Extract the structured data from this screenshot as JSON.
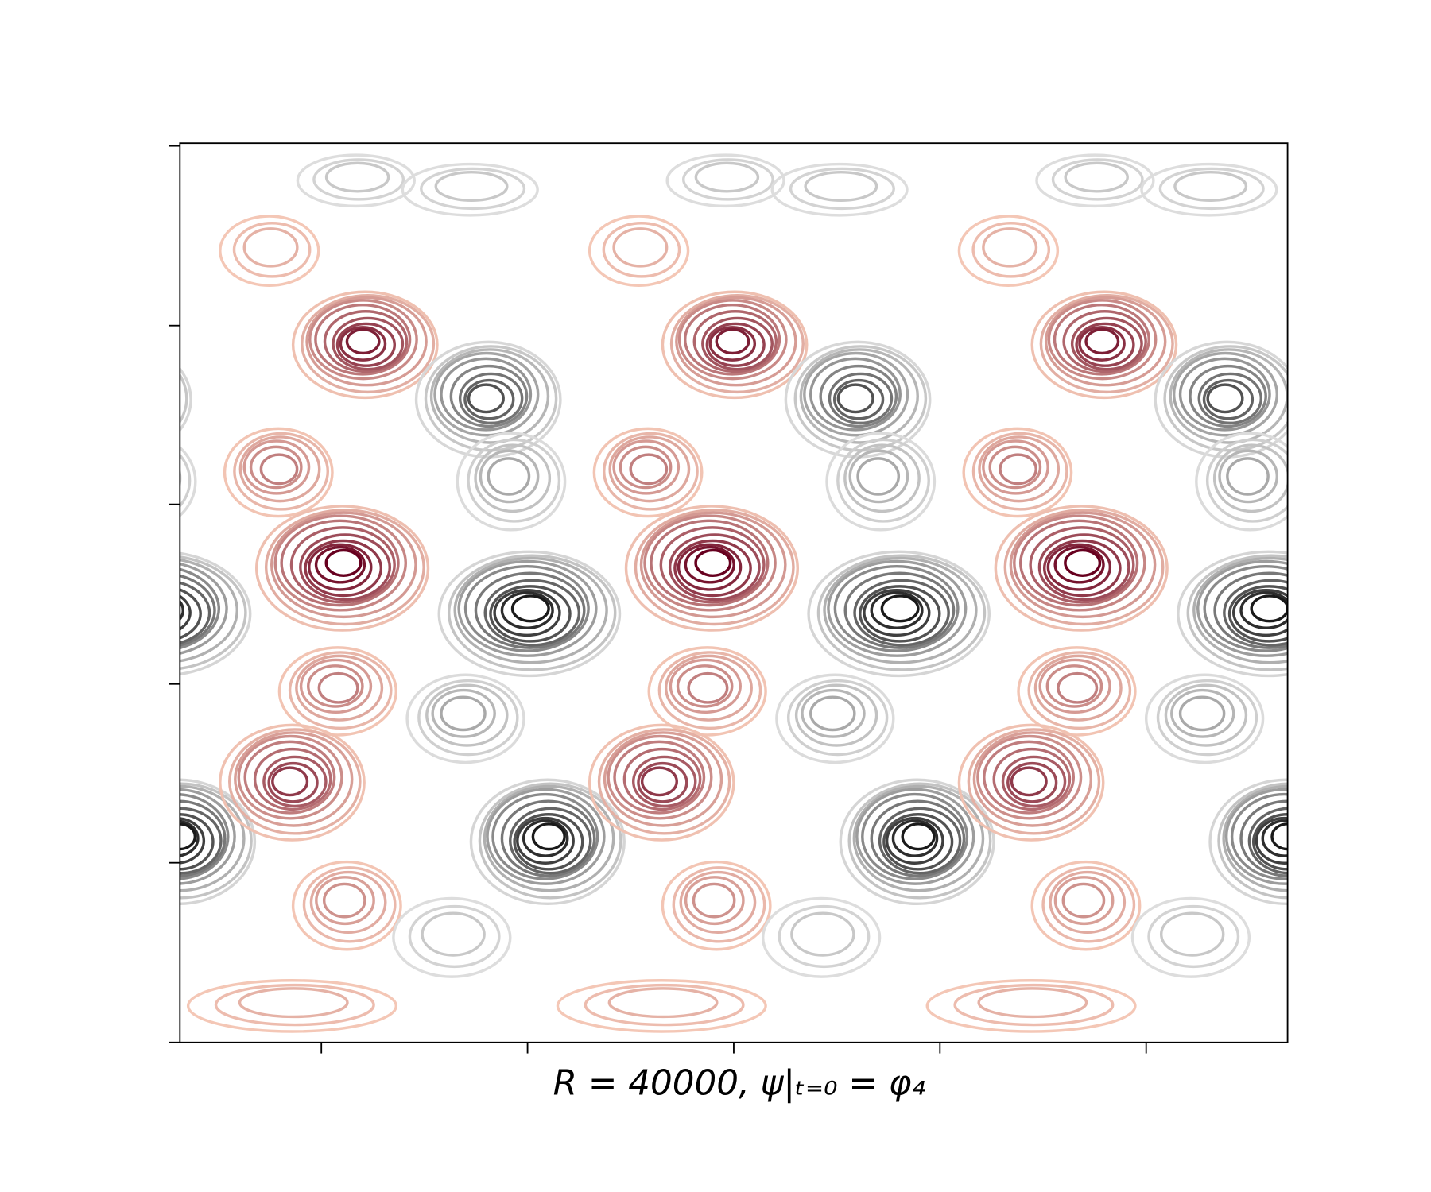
{
  "chart_data": {
    "type": "contour",
    "xlabel": "R = 40000, ψ|ₜ₌₀ = φ₄"
  }
}
